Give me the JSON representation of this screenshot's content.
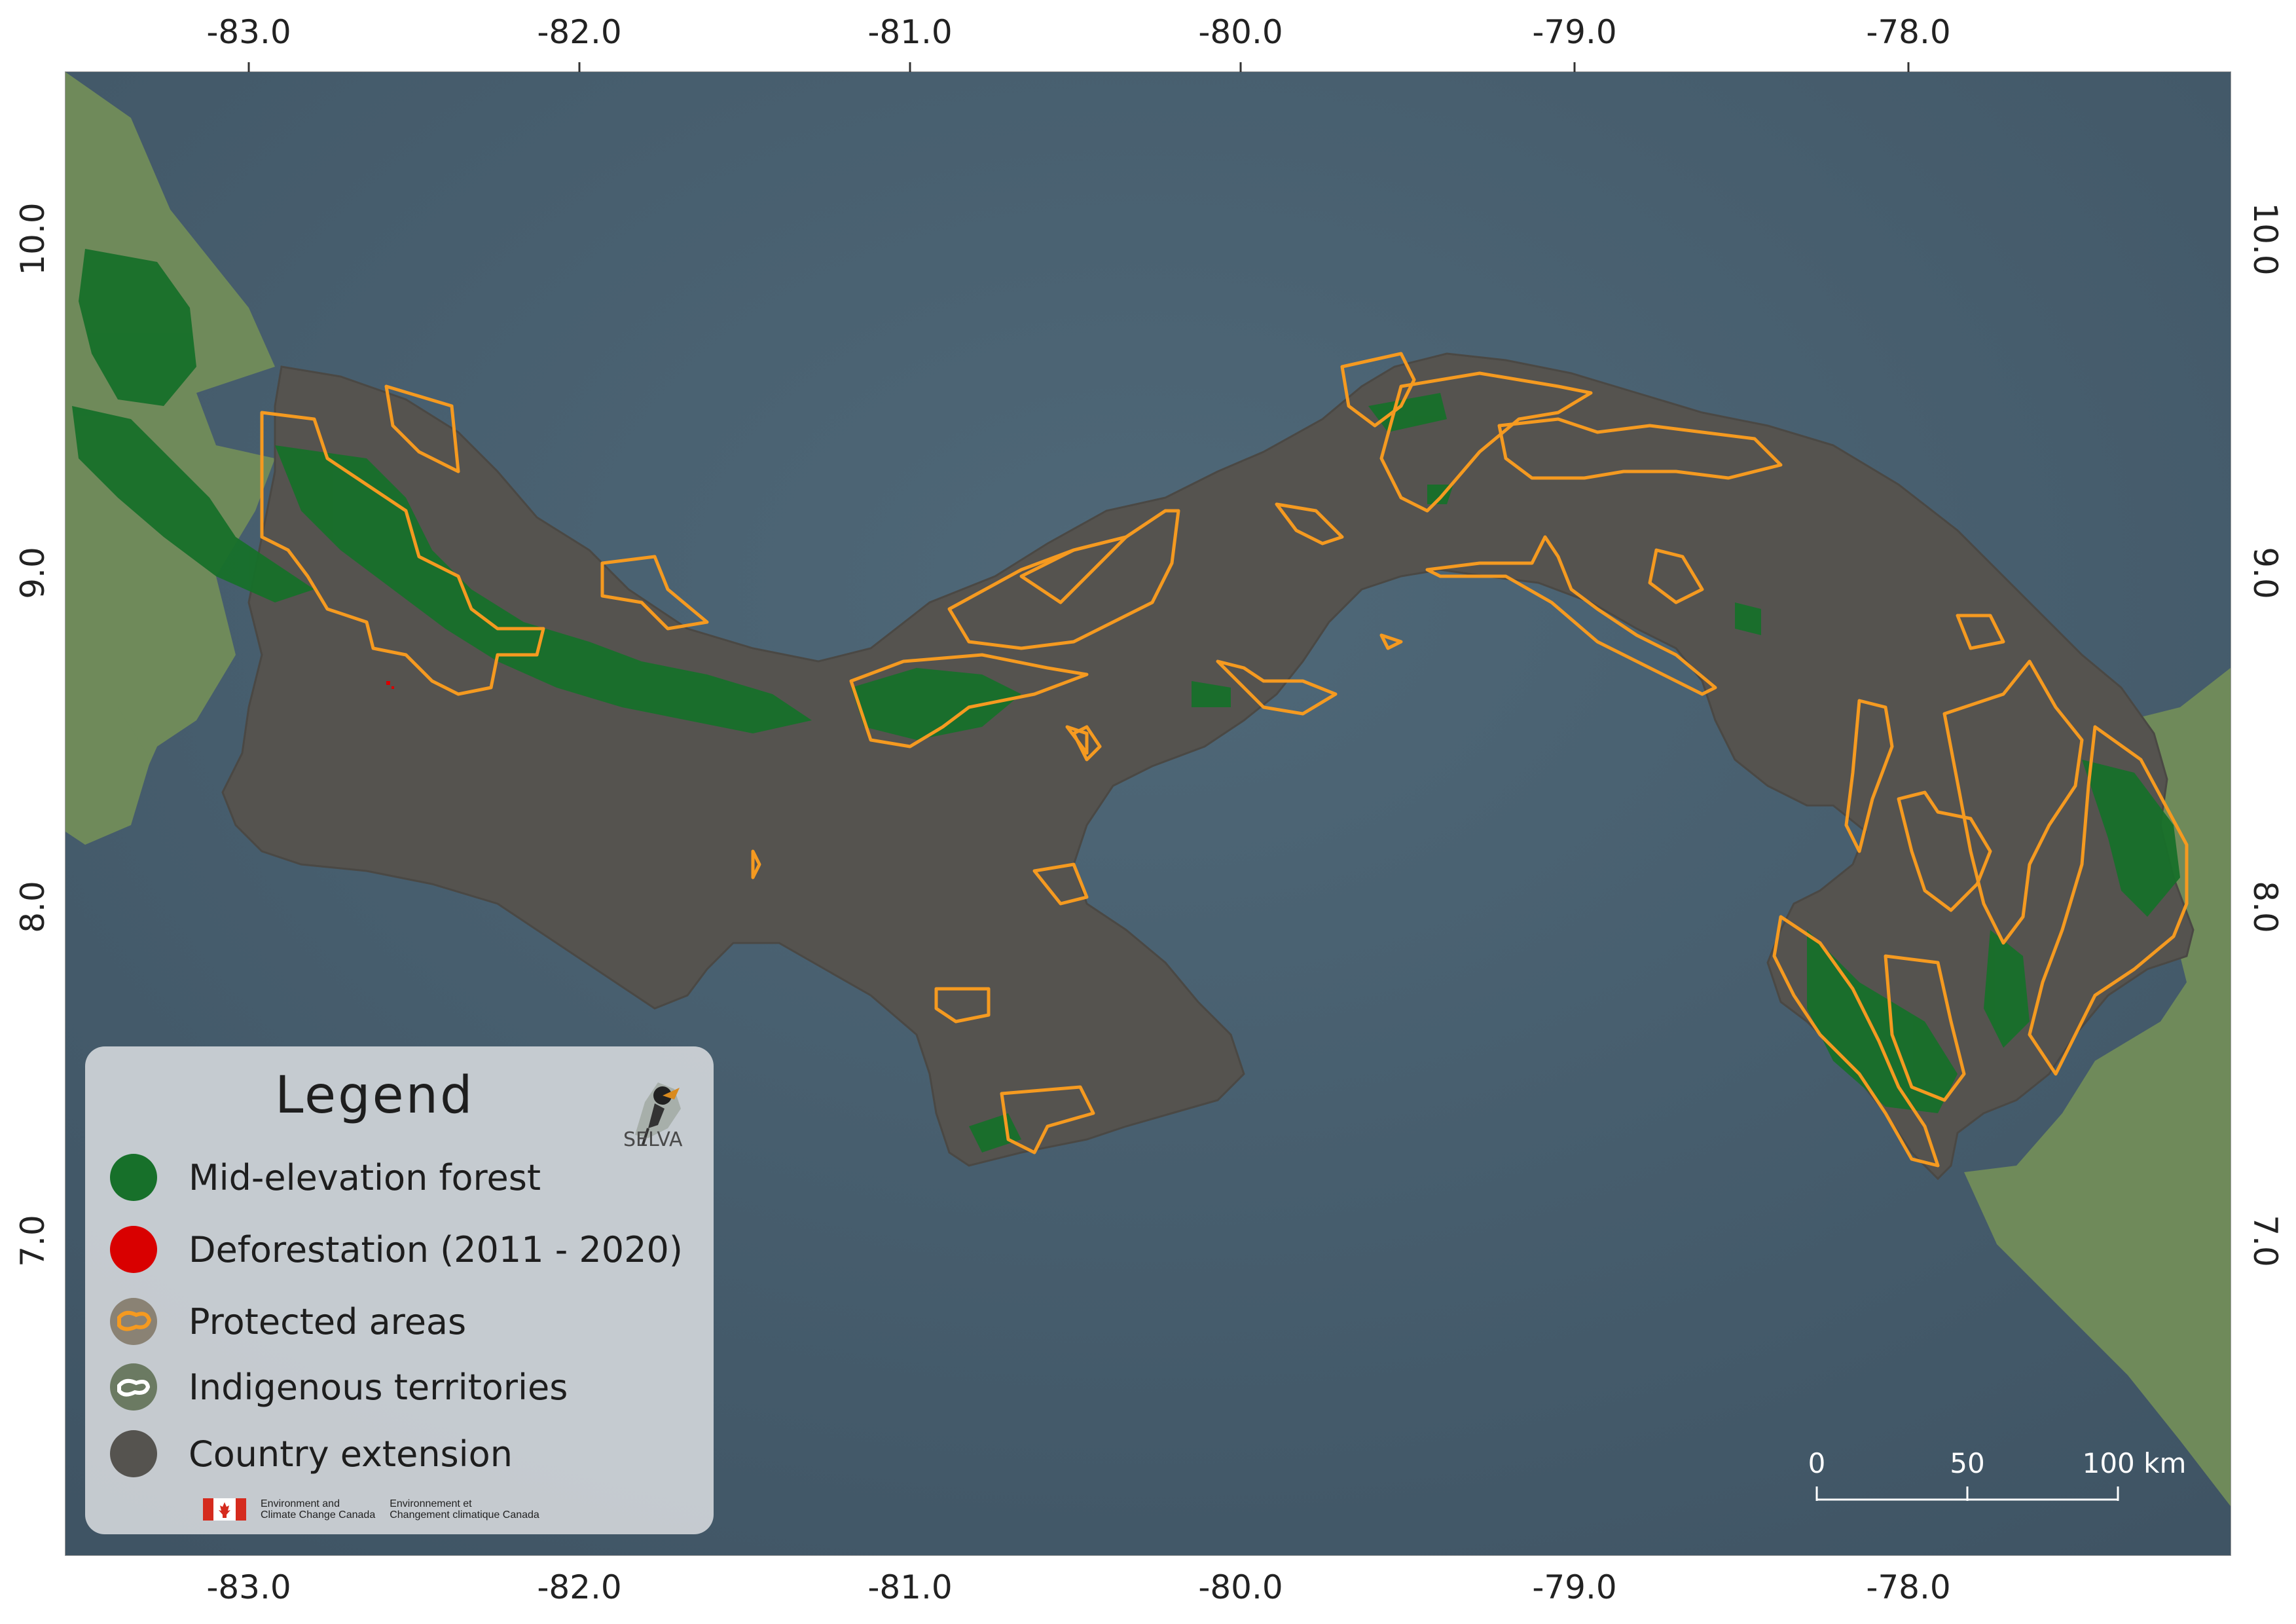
{
  "axes": {
    "longitude_ticks": [
      "-83.0",
      "-82.0",
      "-81.0",
      "-80.0",
      "-79.0",
      "-78.0"
    ],
    "latitude_ticks": [
      "10.0",
      "9.0",
      "8.0",
      "7.0"
    ]
  },
  "legend": {
    "title": "Legend",
    "items": [
      {
        "label": "Mid-elevation forest",
        "color": "#17702a",
        "icon": "filled-circle"
      },
      {
        "label": "Deforestation (2011 - 2020)",
        "color": "#d90000",
        "icon": "filled-circle"
      },
      {
        "label": "Protected areas",
        "color": "#f59a20",
        "icon": "outline-blob-circle"
      },
      {
        "label": "Indigenous territories",
        "color": "#6b7a62",
        "icon": "white-outline-blob-circle"
      },
      {
        "label": "Country extension",
        "color": "#55534f",
        "icon": "filled-circle"
      }
    ],
    "logo_text": "SELVA",
    "agency_en": [
      "Environment and",
      "Climate Change Canada"
    ],
    "agency_fr": [
      "Environnement et",
      "Changement climatique Canada"
    ]
  },
  "scale_bar": {
    "labels": [
      "0",
      "50",
      "100 km"
    ]
  },
  "colors": {
    "sea": "#4a6272",
    "land_neighbor": "#6f8a5a",
    "country": "#55534f",
    "forest": "#17702a",
    "protected_outline": "#f59a20",
    "deforestation": "#d90000"
  }
}
